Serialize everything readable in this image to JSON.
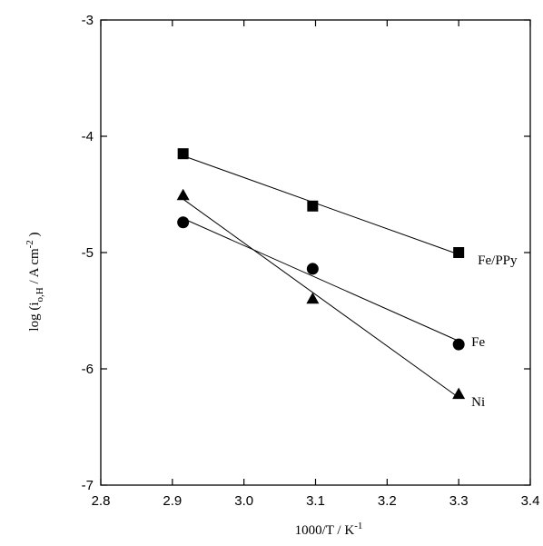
{
  "chart_data": {
    "type": "scatter",
    "xlabel": "1000/T / K",
    "xlabel_sup": "-1",
    "ylabel_parts": {
      "prefix": "log (i",
      "sub": "o,H",
      "mid": " / A cm",
      "sup": "-2",
      "suffix": " )"
    },
    "xlim": [
      2.8,
      3.4
    ],
    "ylim": [
      -7,
      -3
    ],
    "x_ticks": [
      2.8,
      2.9,
      3.0,
      3.1,
      3.2,
      3.3,
      3.4
    ],
    "x_tick_labels": [
      "2.8",
      "2.9",
      "3.0",
      "3.1",
      "3.2",
      "3.3",
      "3.4"
    ],
    "y_ticks": [
      -7,
      -6,
      -5,
      -4,
      -3
    ],
    "y_tick_labels": [
      "-7",
      "-6",
      "-5",
      "-4",
      "-3"
    ],
    "grid": false,
    "legend": "direct labels at line ends",
    "series": [
      {
        "name": "Fe/PPy",
        "marker": "square",
        "x": [
          2.915,
          3.096,
          3.3
        ],
        "y": [
          -4.15,
          -4.6,
          -5.0
        ],
        "fit_line": true
      },
      {
        "name": "Fe",
        "marker": "circle",
        "x": [
          2.915,
          3.096,
          3.3
        ],
        "y": [
          -4.74,
          -5.14,
          -5.79
        ],
        "fit_line": true
      },
      {
        "name": "Ni",
        "marker": "triangle",
        "x": [
          2.915,
          3.096,
          3.3
        ],
        "y": [
          -4.51,
          -5.4,
          -6.22
        ],
        "fit_line": true
      }
    ]
  }
}
